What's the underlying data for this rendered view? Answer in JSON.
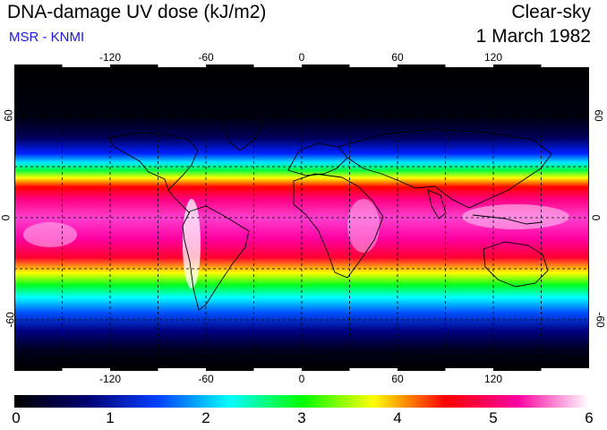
{
  "header": {
    "title": "DNA-damage UV dose (kJ/m2)",
    "subtitle": "MSR - KNMI",
    "condition": "Clear-sky",
    "date": "1 March 1982"
  },
  "map": {
    "projection": "plate-carree",
    "lon_range": [
      -180,
      180
    ],
    "lat_range": [
      -90,
      90
    ],
    "gridlines": "dashed",
    "lon_ticks": [
      "-120",
      "-60",
      "0",
      "60",
      "120"
    ],
    "lat_ticks": [
      "60",
      "0",
      "-60"
    ],
    "lon_tick_values": [
      -120,
      -60,
      0,
      60,
      120
    ],
    "lat_tick_values": [
      60,
      0,
      -60
    ]
  },
  "colorbar": {
    "min": 0,
    "max": 6,
    "labels": [
      "0",
      "1",
      "2",
      "3",
      "4",
      "5",
      "6"
    ],
    "label_values": [
      0,
      1,
      2,
      3,
      4,
      5,
      6
    ],
    "colors": [
      "#000000",
      "#000070",
      "#0040ff",
      "#00ffff",
      "#00ff00",
      "#ffff00",
      "#ff0000",
      "#ff00a0",
      "#ffffff"
    ]
  }
}
